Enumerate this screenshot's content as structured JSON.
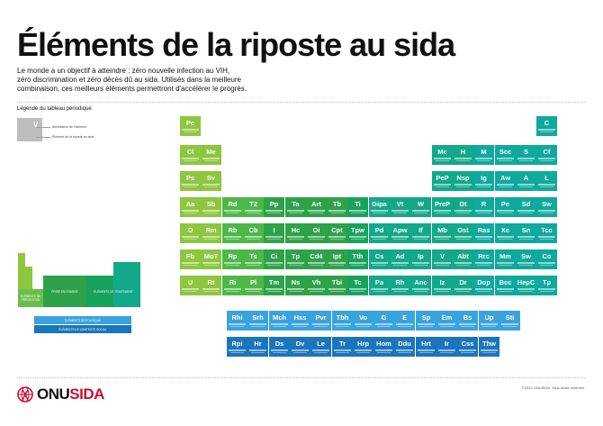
{
  "title": "Éléments de la riposte au sida",
  "intro": {
    "line1": "Le monde a un objectif à atteindre : zéro nouvelle infection au VIH,",
    "line2": "zéro discrimination et zéro décès dû au sida. Utilisés dans la meilleure",
    "line3": "combinaison, ces meilleurs éléments permettront d'accélérer le progrès."
  },
  "legend": {
    "title": "Légende du tableau périodique",
    "symbol": "V",
    "label_abbreviation": "Abréviation de l'élément",
    "label_element": "Élément de la riposte au sida"
  },
  "colors": {
    "g1": "#8dc63f",
    "g2": "#4db848",
    "g3": "#2ea24a",
    "g4": "#18a35d",
    "t1": "#13a88a",
    "t2": "#0fa99d",
    "b1": "#3aa3dc",
    "b2": "#1b75bb",
    "brand_red": "#c8102e"
  },
  "groups": [
    {
      "rows": [
        "Pc",
        "Cl",
        "Ps",
        "Aa",
        "O",
        "Fb",
        "U"
      ],
      "color": "g1"
    },
    {
      "rows": [
        null,
        "Me",
        "Sv",
        "Sb",
        "Rm",
        "MoT",
        "Rt"
      ],
      "color": "g1"
    },
    {
      "rows": [
        null,
        null,
        null,
        "Rd",
        "Rb",
        "Rp",
        "Ri"
      ],
      "color": "g2"
    },
    {
      "rows": [
        null,
        null,
        null,
        "T2",
        "Cb",
        "Ts",
        "Pl"
      ],
      "color": "g2"
    },
    {
      "rows": [
        null,
        null,
        null,
        "Pp",
        "I",
        "Ci",
        "Tm"
      ],
      "color": "g3"
    },
    {
      "rows": [
        null,
        null,
        null,
        "Ta",
        "Hc",
        "Tp",
        "Ns"
      ],
      "color": "g3"
    },
    {
      "rows": [
        null,
        null,
        null,
        "Art",
        "Oi",
        "Cd4",
        "Vh"
      ],
      "color": "g3"
    },
    {
      "rows": [
        null,
        null,
        null,
        "Tb",
        "Cpt",
        "Ipt",
        "Tbi"
      ],
      "color": "g3"
    },
    {
      "rows": [
        null,
        null,
        null,
        "Ti",
        "Tpw",
        "Tth",
        "Tc"
      ],
      "color": "g4"
    },
    {
      "rows": [
        null,
        null,
        null,
        "Gipa",
        "Pd",
        "Cs",
        "Pa"
      ],
      "color": "t1"
    },
    {
      "rows": [
        null,
        null,
        null,
        "Vt",
        "Apw",
        "Ad",
        "Rh"
      ],
      "color": "t1"
    },
    {
      "rows": [
        null,
        null,
        null,
        "W",
        "If",
        "Ip",
        "Anc"
      ],
      "color": "t1"
    },
    {
      "rows": [
        null,
        "Mc",
        "PeP",
        "PreP",
        "Mb",
        "V",
        "Iz"
      ],
      "color": "t1"
    },
    {
      "rows": [
        null,
        "H",
        "Nsp",
        "Dt",
        "Ost",
        "Abt",
        "Dr"
      ],
      "color": "t1"
    },
    {
      "rows": [
        null,
        "M",
        "Ig",
        "R",
        "Ras",
        "Rrc",
        "Dop"
      ],
      "color": "t2"
    },
    {
      "rows": [
        null,
        "Scc",
        "Aw",
        "Pe",
        "Xe",
        "Mm",
        "Bcc"
      ],
      "color": "t2"
    },
    {
      "rows": [
        null,
        "S",
        "A",
        "Sd",
        "Sn",
        "Sw",
        "HepC"
      ],
      "color": "t2"
    },
    {
      "rows": [
        "C",
        "Cf",
        "L",
        "Sw",
        "Tcc",
        "Co",
        "Tp"
      ],
      "color": "t2"
    }
  ],
  "f_rows": [
    {
      "cells": [
        "Rhi",
        "Srh",
        "Mch",
        "Hss",
        "Pvr",
        "Tbh",
        "Vo",
        "G",
        "E",
        "Sp",
        "Em",
        "Bs",
        "Up",
        "Sti"
      ],
      "color": "b1"
    },
    {
      "cells": [
        "Rpi",
        "Hr",
        "Ds",
        "Dv",
        "Le",
        "Tr",
        "Hrp",
        "Hom",
        "Ddu",
        "Hrt",
        "Ir",
        "Css",
        "Thw"
      ],
      "color": "b2"
    }
  ],
  "mini_table": {
    "label_a": "ÉLÉMENTS DE PRÉVENTION",
    "label_b": "PRISE EN CHARGE",
    "label_c": "ÉLÉMENTS DE TRAITEMENT",
    "label_d": "ÉLÉMENTS DE POLITIQUE",
    "label_e": "ÉLÉMENTS DE CONTEXTE SOCIAL"
  },
  "logo": {
    "word_a": "ONU",
    "word_b": "SIDA"
  },
  "copyright": "©2013 ONUSIDA. Tous droits réservés."
}
